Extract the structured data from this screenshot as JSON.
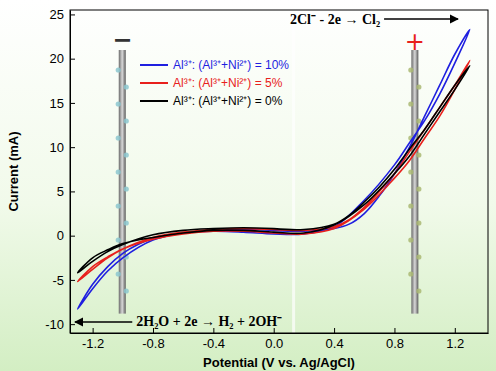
{
  "chart_data": {
    "type": "line",
    "x_label": "Potential (V vs. Ag/AgCl)",
    "y_label": "Current (mA)",
    "xlim": [
      -1.35,
      1.42
    ],
    "ylim": [
      -11,
      25.5
    ],
    "xticks": [
      -1.2,
      -0.8,
      -0.4,
      {
        "value": 0,
        "label": "0.0"
      },
      0.4,
      0.8,
      1.2
    ],
    "yticks": [
      -10,
      -5,
      0,
      5,
      10,
      15,
      20,
      25
    ],
    "grid": false,
    "legend": "upper left",
    "annotations": [
      {
        "text": "2Cl⁻ - 2e → Cl₂"
      },
      {
        "text": "2H₂O + 2e → H₂ + 2OH⁻"
      },
      {
        "text": "−"
      },
      {
        "text": "+"
      }
    ],
    "series": [
      {
        "name": "Al³⁺: (Al³⁺+Ni²⁺) = 10%",
        "color": "#1f1fe0",
        "x": [
          0,
          -0.2,
          -0.4,
          -0.6,
          -0.8,
          -1.0,
          -1.1,
          -1.2,
          -1.3,
          -1.2,
          -1.1,
          -1.0,
          -0.9,
          -0.8,
          -0.6,
          -0.4,
          -0.2,
          0,
          0.2,
          0.4,
          0.6,
          0.8,
          0.9,
          1.0,
          1.1,
          1.2,
          1.3,
          1.2,
          1.1,
          1.0,
          0.9,
          0.8,
          0.7,
          0.6,
          0.5,
          0.4,
          0.2,
          0
        ],
        "values": [
          0.6,
          0.7,
          0.6,
          0.3,
          -0.5,
          -2.5,
          -4,
          -6,
          -8.3,
          -5.5,
          -3.5,
          -2,
          -1,
          -0.3,
          0.3,
          0.5,
          0.4,
          0.2,
          0.2,
          1,
          4,
          8,
          10.5,
          13,
          16,
          19.5,
          23.3,
          20.5,
          17,
          13.5,
          10,
          7,
          4.5,
          2.5,
          1.3,
          0.8,
          0.5,
          0.6
        ]
      },
      {
        "name": "Al³⁺: (Al³⁺+Ni²⁺) = 5%",
        "color": "#e8201c",
        "x": [
          0,
          -0.2,
          -0.4,
          -0.6,
          -0.8,
          -1.0,
          -1.1,
          -1.2,
          -1.3,
          -1.2,
          -1.1,
          -1.0,
          -0.8,
          -0.6,
          -0.4,
          -0.2,
          0,
          0.2,
          0.4,
          0.6,
          0.8,
          0.9,
          1.0,
          1.1,
          1.2,
          1.3,
          1.2,
          1.1,
          1.0,
          0.9,
          0.8,
          0.7,
          0.6,
          0.5,
          0.4,
          0.2,
          0
        ],
        "values": [
          0.7,
          0.8,
          0.7,
          0.4,
          -0.2,
          -1.5,
          -2.5,
          -3.8,
          -5.2,
          -3.5,
          -2.4,
          -1.5,
          -0.4,
          0.2,
          0.5,
          0.5,
          0.3,
          0.2,
          0.8,
          3,
          6.5,
          8.5,
          11,
          13.5,
          16.5,
          19.8,
          17,
          14.5,
          12,
          9.5,
          7,
          5,
          3.2,
          1.8,
          1,
          0.6,
          0.7
        ]
      },
      {
        "name": "Al³⁺: (Al³⁺+Ni²⁺) = 0%",
        "color": "#000000",
        "x": [
          0,
          -0.2,
          -0.4,
          -0.6,
          -0.8,
          -1.0,
          -1.1,
          -1.2,
          -1.3,
          -1.2,
          -1.1,
          -1.0,
          -0.8,
          -0.6,
          -0.4,
          -0.2,
          0,
          0.2,
          0.4,
          0.6,
          0.8,
          0.9,
          1.0,
          1.1,
          1.2,
          1.3,
          1.2,
          1.1,
          1.0,
          0.9,
          0.8,
          0.7,
          0.6,
          0.5,
          0.4,
          0.2,
          0
        ],
        "values": [
          0.8,
          0.9,
          0.8,
          0.6,
          0.1,
          -1,
          -1.8,
          -2.9,
          -4.2,
          -2.5,
          -1.6,
          -0.9,
          -0.2,
          0.3,
          0.6,
          0.6,
          0.4,
          0.3,
          1.2,
          3.5,
          7,
          9,
          11.5,
          14,
          16.5,
          19.2,
          17,
          14.5,
          12,
          9.8,
          7.5,
          5.5,
          3.8,
          2.3,
          1.3,
          0.7,
          0.8
        ]
      }
    ]
  }
}
